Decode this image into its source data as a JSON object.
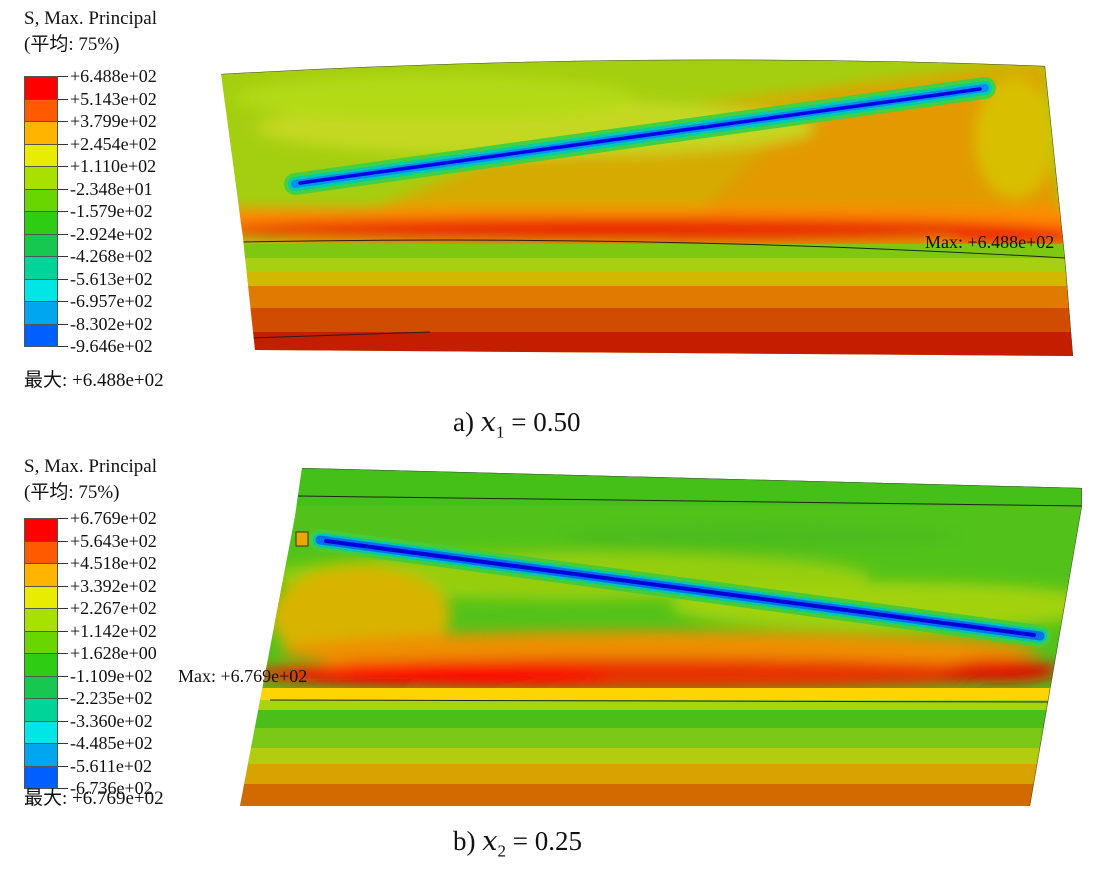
{
  "panel_a": {
    "legend": {
      "title": "S, Max. Principal",
      "averaging": "(平均: 75%)",
      "ticks": [
        "+6.488e+02",
        "+5.143e+02",
        "+3.799e+02",
        "+2.454e+02",
        "+1.110e+02",
        "-2.348e+01",
        "-1.579e+02",
        "-2.924e+02",
        "-4.268e+02",
        "-5.613e+02",
        "-6.957e+02",
        "-8.302e+02",
        "-9.646e+02"
      ],
      "colors": [
        "#ff0000",
        "#ff5a00",
        "#ffb400",
        "#e8ec00",
        "#a8e000",
        "#6ad600",
        "#2ecc12",
        "#16c850",
        "#00d498",
        "#00e6e6",
        "#00a6f0",
        "#0060ff",
        "#0000ff"
      ],
      "max_text": "最大: +6.488e+02"
    },
    "max_marker": "Max: +6.488e+02",
    "caption_label": "a)",
    "caption_var": "x",
    "caption_sub": "1",
    "caption_value": "= 0.50"
  },
  "panel_b": {
    "legend": {
      "title": "S, Max. Principal",
      "averaging": "(平均: 75%)",
      "ticks": [
        "+6.769e+02",
        "+5.643e+02",
        "+4.518e+02",
        "+3.392e+02",
        "+2.267e+02",
        "+1.142e+02",
        "+1.628e+00",
        "-1.109e+02",
        "-2.235e+02",
        "-3.360e+02",
        "-4.485e+02",
        "-5.611e+02",
        "-6.736e+02"
      ],
      "colors": [
        "#ff0000",
        "#ff5a00",
        "#ffb400",
        "#e8ec00",
        "#a8e000",
        "#6ad600",
        "#2ecc12",
        "#16c850",
        "#00d498",
        "#00e6e6",
        "#00a6f0",
        "#0060ff",
        "#0000ff"
      ],
      "max_text": "最大: +6.769e+02"
    },
    "max_marker": "Max: +6.769e+02",
    "caption_label": "b)",
    "caption_var": "x",
    "caption_sub": "2",
    "caption_value": "= 0.25"
  }
}
